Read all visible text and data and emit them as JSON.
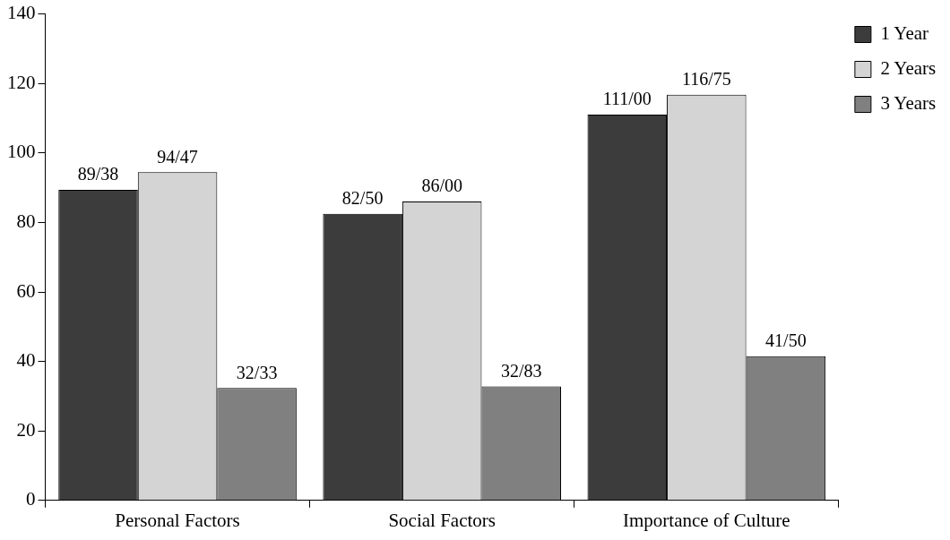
{
  "chart_data": {
    "type": "bar",
    "categories": [
      "Personal Factors",
      "Social Factors",
      "Importance of Culture"
    ],
    "series": [
      {
        "name": "1 Year",
        "color": "#3c3c3c",
        "values": [
          89.38,
          82.5,
          111.0
        ],
        "value_labels": [
          "89/38",
          "82/50",
          "111/00"
        ]
      },
      {
        "name": "2 Years",
        "color": "#d4d4d4",
        "values": [
          94.47,
          86.0,
          116.75
        ],
        "value_labels": [
          "94/47",
          "86/00",
          "116/75"
        ]
      },
      {
        "name": "3 Years",
        "color": "#808080",
        "values": [
          32.33,
          32.83,
          41.5
        ],
        "value_labels": [
          "32/33",
          "32/83",
          "41/50"
        ]
      }
    ],
    "ylim": [
      0,
      140
    ],
    "yticks": [
      0,
      20,
      40,
      60,
      80,
      100,
      120,
      140
    ],
    "grid": false,
    "legend": "top right"
  }
}
